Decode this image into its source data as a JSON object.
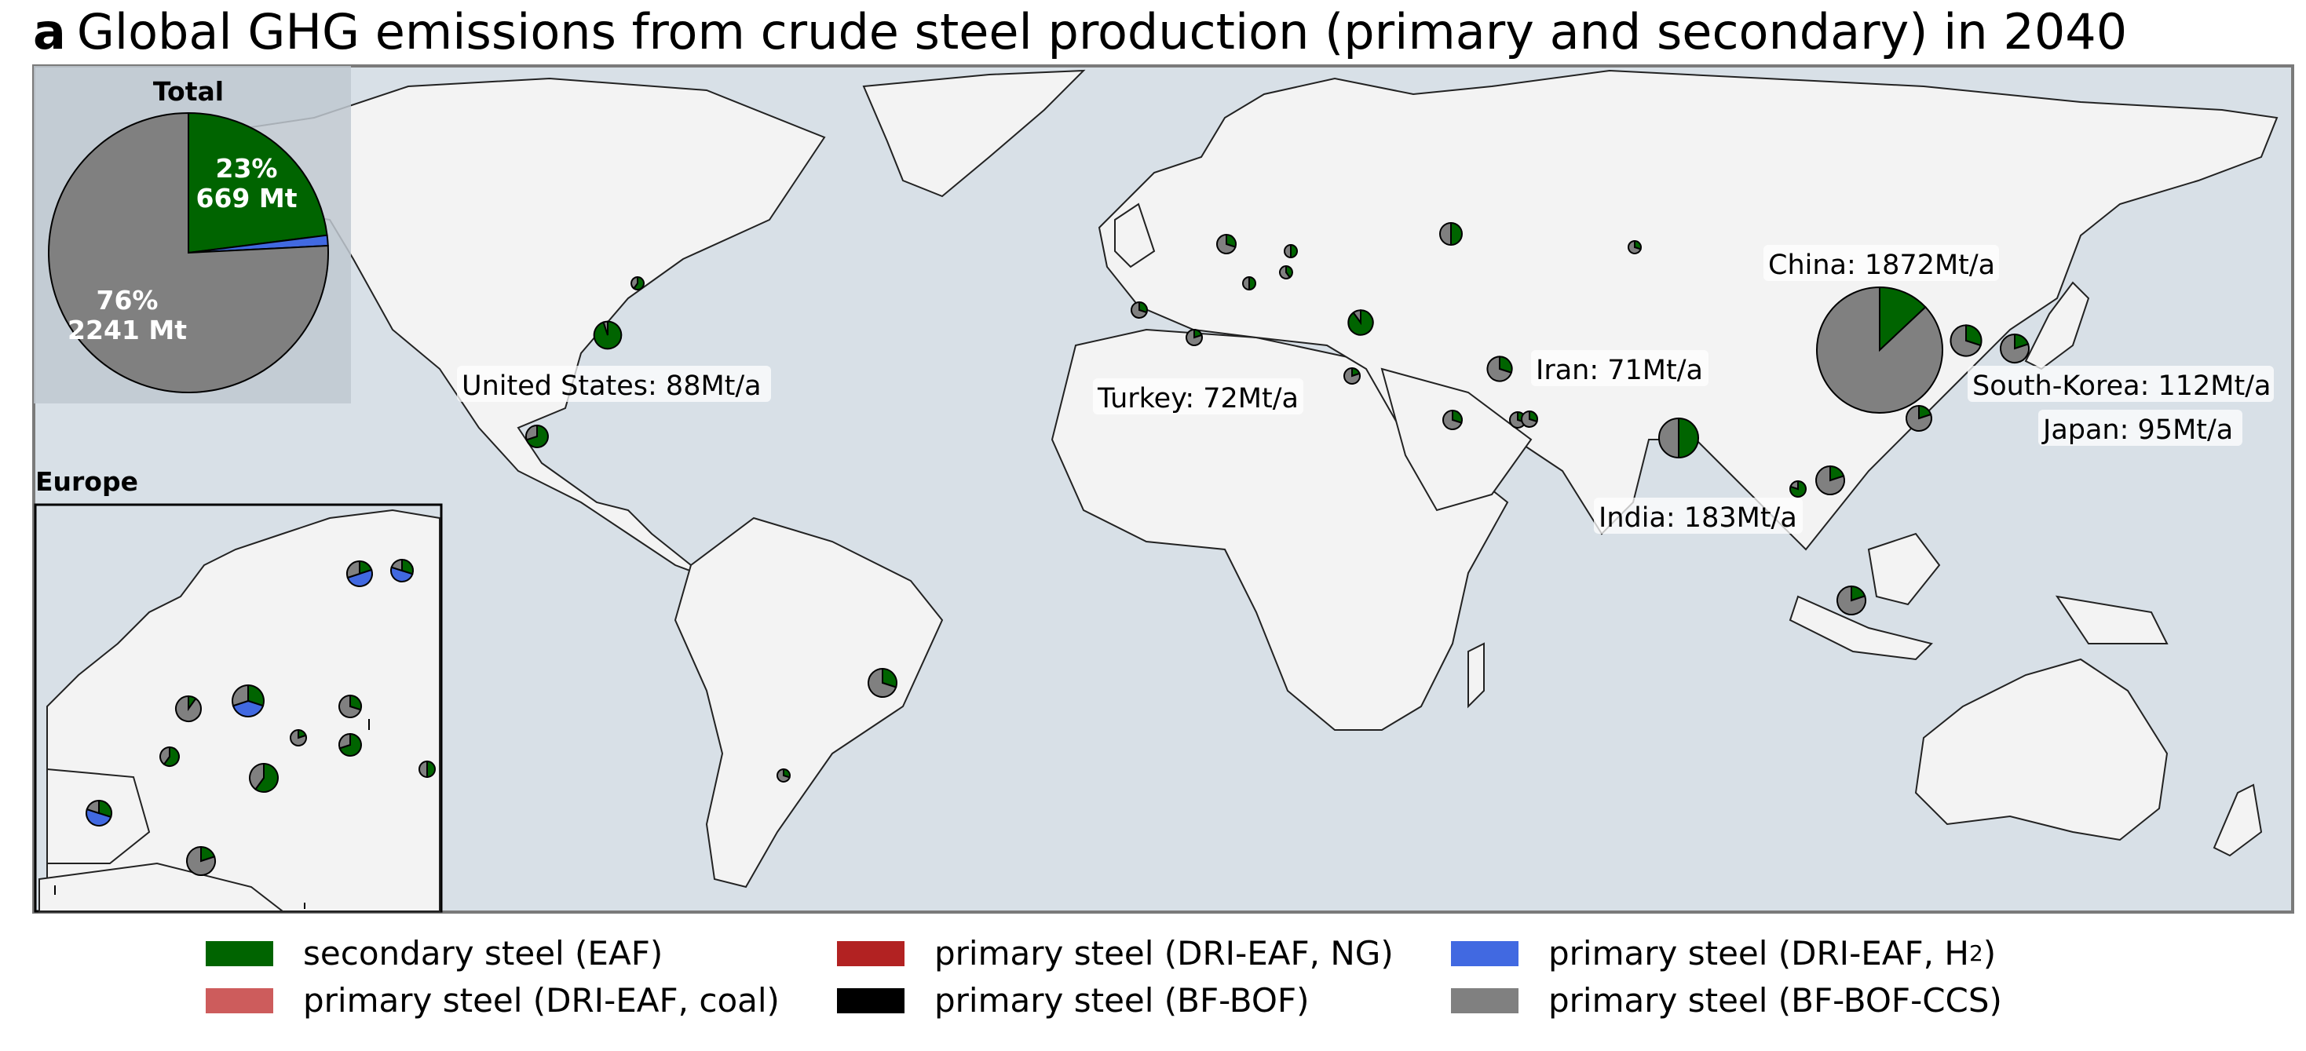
{
  "title": {
    "panel": "a",
    "text": "Global GHG emissions from crude steel production (primary and secondary) in 2040"
  },
  "colors": {
    "secondary_eaf": "#006400",
    "dri_eaf_ng": "#b22222",
    "dri_eaf_h2": "#4169e1",
    "dri_eaf_coal": "#cd5c5c",
    "bf_bof": "#000000",
    "bf_bof_ccs": "#808080",
    "ocean": "#d8e0e7",
    "land": "#f3f3f3"
  },
  "total_inset": {
    "title": "Total",
    "secondary_pct": "23%",
    "secondary_mt": "669 Mt",
    "ccs_pct": "76%",
    "ccs_mt": "2241 Mt",
    "shares": {
      "secondary_eaf": 0.23,
      "dri_eaf_h2": 0.012,
      "bf_bof_ccs": 0.758
    }
  },
  "europe_inset": {
    "title": "Europe"
  },
  "country_labels": {
    "united_states": "United States: 88Mt/a",
    "turkey": "Turkey: 72Mt/a",
    "iran": "Iran: 71Mt/a",
    "china": "China: 1872Mt/a",
    "south_korea": "South-Korea: 112Mt/a",
    "japan": "Japan: 95Mt/a",
    "india": "India: 183Mt/a"
  },
  "legend": [
    {
      "key": "secondary_eaf",
      "label": "secondary steel (EAF)"
    },
    {
      "key": "dri_eaf_ng",
      "label": "primary steel (DRI-EAF, NG)"
    },
    {
      "key": "dri_eaf_h2",
      "label": "primary steel (DRI-EAF, H",
      "sub": "2",
      "suffix": ")"
    },
    {
      "key": "dri_eaf_coal",
      "label": "primary steel (DRI-EAF, coal)"
    },
    {
      "key": "bf_bof",
      "label": "primary steel (BF-BOF)"
    },
    {
      "key": "bf_bof_ccs",
      "label": "primary steel (BF-BOF-CCS)"
    }
  ],
  "country_pies": {
    "china": {
      "emissions_mt": 1872,
      "secondary_eaf": 0.13,
      "bf_bof_ccs": 0.87
    },
    "india": {
      "emissions_mt": 183,
      "secondary_eaf": 0.5,
      "bf_bof_ccs": 0.5
    },
    "south_korea": {
      "emissions_mt": 112,
      "secondary_eaf": 0.3,
      "bf_bof_ccs": 0.7
    },
    "japan": {
      "emissions_mt": 95,
      "secondary_eaf": 0.2,
      "bf_bof_ccs": 0.8
    },
    "united_states": {
      "emissions_mt": 88,
      "secondary_eaf": 0.95,
      "bf_bof_ccs": 0.05
    },
    "turkey": {
      "emissions_mt": 72,
      "secondary_eaf": 0.9,
      "bf_bof_ccs": 0.1
    },
    "iran": {
      "emissions_mt": 71,
      "secondary_eaf": 0.3,
      "bf_bof_ccs": 0.7
    }
  }
}
